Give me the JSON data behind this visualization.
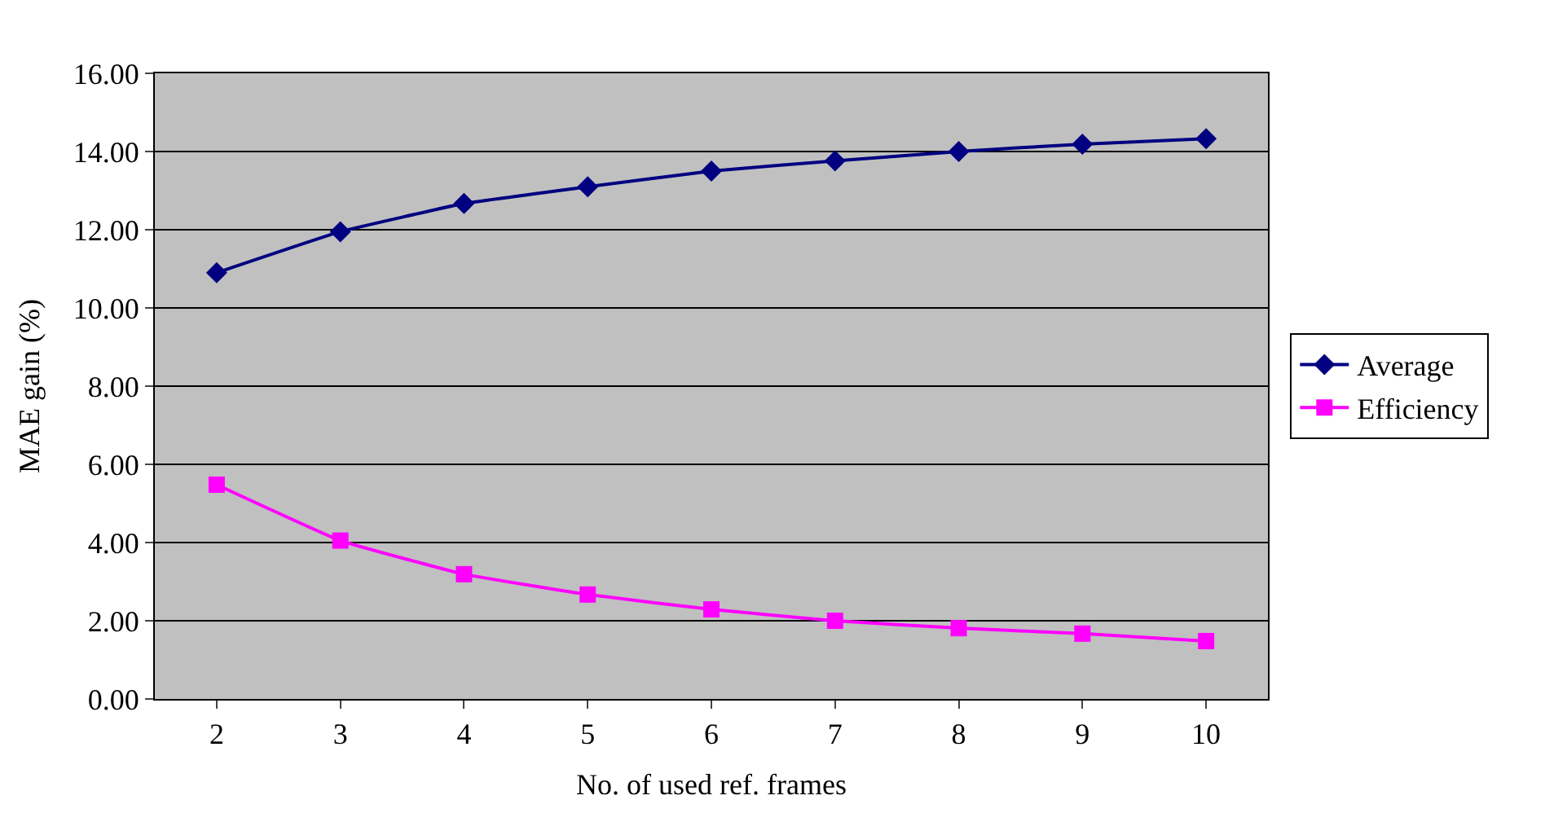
{
  "chart_data": {
    "type": "line",
    "xlabel": "No. of used ref. frames",
    "ylabel": "MAE gain (%)",
    "categories": [
      "2",
      "3",
      "4",
      "5",
      "6",
      "7",
      "8",
      "9",
      "10"
    ],
    "series": [
      {
        "name": "Average",
        "color": "#000080",
        "marker": "diamond",
        "values": [
          10.9,
          11.95,
          12.67,
          13.1,
          13.5,
          13.76,
          14.0,
          14.19,
          14.33
        ]
      },
      {
        "name": "Efficiency",
        "color": "#ff00ff",
        "marker": "square",
        "values": [
          5.48,
          4.05,
          3.19,
          2.67,
          2.29,
          2.0,
          1.81,
          1.67,
          1.48
        ]
      }
    ],
    "ylim": [
      0,
      16
    ],
    "yticks": [
      {
        "value": 0,
        "label": "0.00"
      },
      {
        "value": 2,
        "label": "2.00"
      },
      {
        "value": 4,
        "label": "4.00"
      },
      {
        "value": 6,
        "label": "6.00"
      },
      {
        "value": 8,
        "label": "8.00"
      },
      {
        "value": 10,
        "label": "10.00"
      },
      {
        "value": 12,
        "label": "12.00"
      },
      {
        "value": 14,
        "label": "14.00"
      },
      {
        "value": 16,
        "label": "16.00"
      }
    ],
    "grid": "y",
    "legend": "right",
    "line_style": "solid"
  }
}
